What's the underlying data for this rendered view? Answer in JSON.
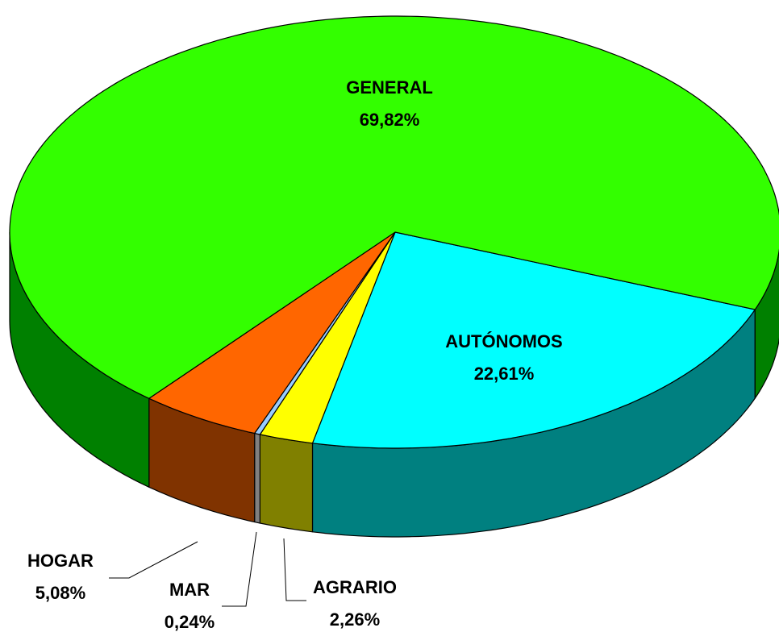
{
  "chart_data": {
    "type": "pie3d",
    "categories": [
      "AUTÓNOMOS",
      "AGRARIO",
      "MAR",
      "HOGAR",
      "GENERAL"
    ],
    "values": [
      22.61,
      2.26,
      0.24,
      5.08,
      69.82
    ],
    "value_labels": [
      "22,61%",
      "2,26%",
      "0,24%",
      "5,08%",
      "69,82%"
    ],
    "colors": [
      "#00ffff",
      "#ffff00",
      "#99ccff",
      "#ff6600",
      "#33ff00"
    ],
    "side_colors": [
      "#008080",
      "#808000",
      "#808080",
      "#803300",
      "#008000"
    ]
  }
}
